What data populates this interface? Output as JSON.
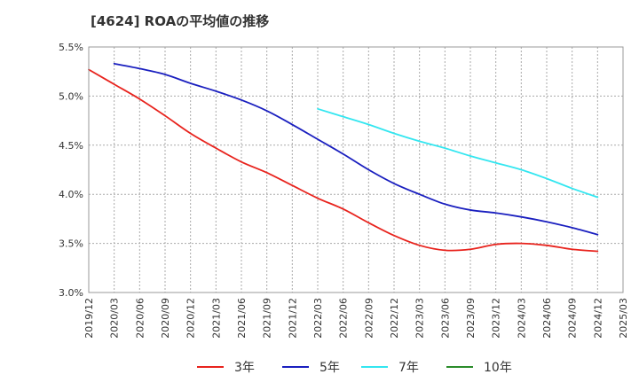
{
  "chart_data": {
    "type": "line",
    "title": "[4624]  ROAの平均値の推移",
    "xlabel": "",
    "ylabel": "",
    "ylim": [
      3.0,
      5.5
    ],
    "y_ticks": [
      "3.0%",
      "3.5%",
      "4.0%",
      "4.5%",
      "5.0%",
      "5.5%"
    ],
    "y_tick_values": [
      3.0,
      3.5,
      4.0,
      4.5,
      5.0,
      5.5
    ],
    "x_ticks": [
      "2019/12",
      "2020/03",
      "2020/06",
      "2020/09",
      "2020/12",
      "2021/03",
      "2021/06",
      "2021/09",
      "2021/12",
      "2022/03",
      "2022/06",
      "2022/09",
      "2022/12",
      "2023/03",
      "2023/06",
      "2023/09",
      "2023/12",
      "2024/03",
      "2024/06",
      "2024/09",
      "2024/12",
      "2025/03"
    ],
    "grid": true,
    "legend_position": "bottom",
    "series": [
      {
        "name": "3年",
        "color": "#e8231d",
        "x": [
          "2019/12",
          "2020/03",
          "2020/06",
          "2020/09",
          "2020/12",
          "2021/03",
          "2021/06",
          "2021/09",
          "2021/12",
          "2022/03",
          "2022/06",
          "2022/09",
          "2022/12",
          "2023/03",
          "2023/06",
          "2023/09",
          "2023/12",
          "2024/03",
          "2024/06",
          "2024/09",
          "2024/12"
        ],
        "values": [
          5.27,
          5.12,
          4.97,
          4.8,
          4.62,
          4.47,
          4.33,
          4.22,
          4.09,
          3.96,
          3.85,
          3.71,
          3.58,
          3.48,
          3.43,
          3.44,
          3.49,
          3.5,
          3.48,
          3.44,
          3.42
        ]
      },
      {
        "name": "5年",
        "color": "#1a1fbf",
        "x": [
          "2020/03",
          "2020/06",
          "2020/09",
          "2020/12",
          "2021/03",
          "2021/06",
          "2021/09",
          "2021/12",
          "2022/03",
          "2022/06",
          "2022/09",
          "2022/12",
          "2023/03",
          "2023/06",
          "2023/09",
          "2023/12",
          "2024/03",
          "2024/06",
          "2024/09",
          "2024/12"
        ],
        "values": [
          5.33,
          5.28,
          5.22,
          5.13,
          5.05,
          4.96,
          4.85,
          4.71,
          4.56,
          4.41,
          4.25,
          4.11,
          4.0,
          3.9,
          3.84,
          3.81,
          3.77,
          3.72,
          3.66,
          3.59
        ]
      },
      {
        "name": "7年",
        "color": "#33e6f0",
        "x": [
          "2022/03",
          "2022/06",
          "2022/09",
          "2022/12",
          "2023/03",
          "2023/06",
          "2023/09",
          "2023/12",
          "2024/03",
          "2024/06",
          "2024/09",
          "2024/12"
        ],
        "values": [
          4.87,
          4.79,
          4.71,
          4.62,
          4.54,
          4.47,
          4.39,
          4.32,
          4.25,
          4.16,
          4.06,
          3.97
        ]
      },
      {
        "name": "10年",
        "color": "#2a8c2a",
        "x": [],
        "values": []
      }
    ]
  }
}
